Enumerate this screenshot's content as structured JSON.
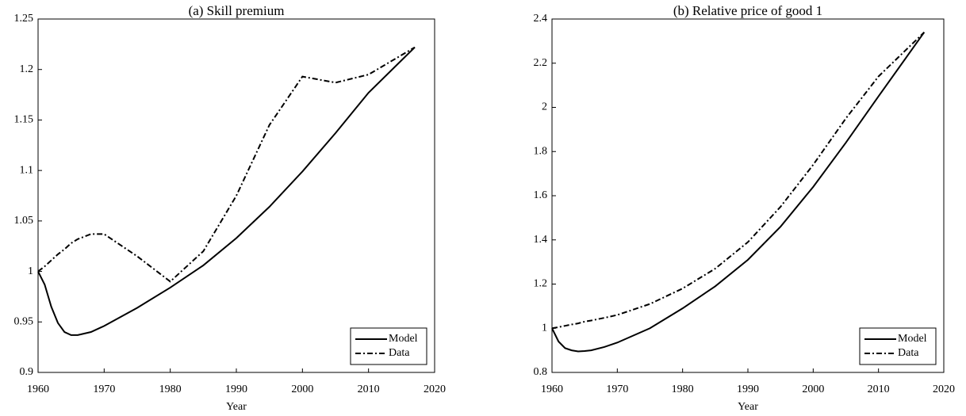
{
  "chart_data": [
    {
      "type": "line",
      "title": "(a) Skill premium",
      "x_label": "Year",
      "x": [
        1960,
        1961,
        1962,
        1963,
        1964,
        1965,
        1966,
        1968,
        1970,
        1975,
        1980,
        1985,
        1990,
        1995,
        2000,
        2005,
        2010,
        2017
      ],
      "series": [
        {
          "name": "Model",
          "color": "#000000",
          "style": "solid",
          "values": [
            1.0,
            0.987,
            0.965,
            0.949,
            0.94,
            0.937,
            0.937,
            0.94,
            0.946,
            0.964,
            0.984,
            1.006,
            1.033,
            1.064,
            1.099,
            1.137,
            1.177,
            1.222
          ]
        },
        {
          "name": "Data",
          "color": "#000000",
          "style": "dashdot",
          "values": [
            1.0,
            1.005,
            1.011,
            1.017,
            1.022,
            1.028,
            1.032,
            1.037,
            1.037,
            1.015,
            0.99,
            1.02,
            1.075,
            1.145,
            1.193,
            1.187,
            1.195,
            1.222
          ]
        }
      ],
      "xlim": [
        1960,
        2020
      ],
      "xticks": [
        1960,
        1970,
        1980,
        1990,
        2000,
        2010,
        2020
      ],
      "ylim": [
        0.9,
        1.25
      ],
      "yticks": [
        0.9,
        0.95,
        1,
        1.05,
        1.1,
        1.15,
        1.2,
        1.25
      ],
      "grid": false,
      "legend": "lower right"
    },
    {
      "type": "line",
      "title": "(b) Relative price of good 1",
      "x_label": "Year",
      "x": [
        1960,
        1961,
        1962,
        1963,
        1964,
        1965,
        1966,
        1968,
        1970,
        1975,
        1980,
        1985,
        1990,
        1995,
        2000,
        2005,
        2010,
        2017
      ],
      "series": [
        {
          "name": "Model",
          "color": "#000000",
          "style": "solid",
          "values": [
            1.0,
            0.94,
            0.91,
            0.9,
            0.895,
            0.897,
            0.9,
            0.915,
            0.935,
            1.0,
            1.09,
            1.19,
            1.31,
            1.46,
            1.64,
            1.84,
            2.05,
            2.34
          ]
        },
        {
          "name": "Data",
          "color": "#000000",
          "style": "dashdot",
          "values": [
            1.0,
            1.005,
            1.011,
            1.017,
            1.022,
            1.03,
            1.035,
            1.047,
            1.06,
            1.11,
            1.18,
            1.27,
            1.39,
            1.55,
            1.74,
            1.95,
            2.14,
            2.34
          ]
        }
      ],
      "xlim": [
        1960,
        2020
      ],
      "xticks": [
        1960,
        1970,
        1980,
        1990,
        2000,
        2010,
        2020
      ],
      "ylim": [
        0.8,
        2.4
      ],
      "yticks": [
        0.8,
        1,
        1.2,
        1.4,
        1.6,
        1.8,
        2,
        2.2,
        2.4
      ],
      "grid": false,
      "legend": "lower right"
    }
  ]
}
